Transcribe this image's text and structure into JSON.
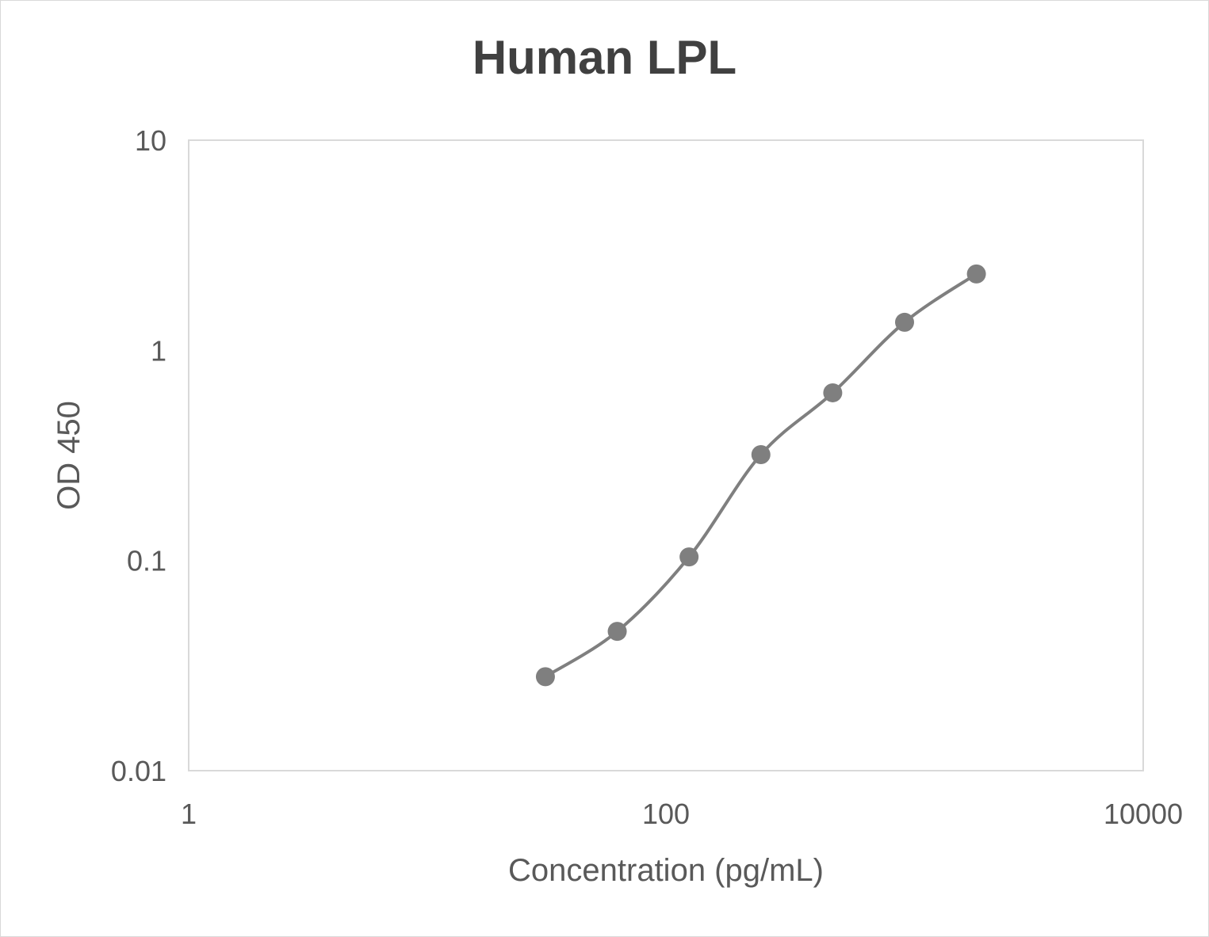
{
  "chart_data": {
    "type": "line",
    "title": "Human LPL",
    "xlabel": "Concentration (pg/mL)",
    "ylabel": "OD 450",
    "x_scale": "log",
    "y_scale": "log",
    "xlim": [
      1,
      10000
    ],
    "ylim": [
      0.01,
      10
    ],
    "x_ticks": [
      "1",
      "100",
      "10000"
    ],
    "y_ticks": [
      "0.01",
      "0.1",
      "1",
      "10"
    ],
    "grid": false,
    "legend": null,
    "smoothed": true,
    "markers": true,
    "series": [
      {
        "name": "Human LPL",
        "color": "#7f7f7f",
        "x": [
          31.25,
          62.5,
          125,
          250,
          500,
          1000,
          2000
        ],
        "y": [
          0.028,
          0.046,
          0.104,
          0.319,
          0.628,
          1.36,
          2.31
        ]
      }
    ]
  },
  "colors": {
    "title": "#404040",
    "text": "#595959",
    "plot_border": "#d9d9d9",
    "series": "#7f7f7f"
  }
}
